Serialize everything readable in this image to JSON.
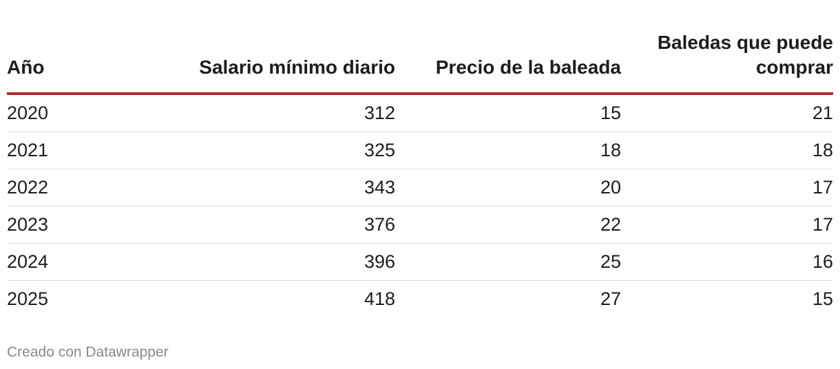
{
  "table": {
    "columns": [
      "Año",
      "Salario mínimo diario",
      "Precio de la baleada",
      "Baledas que puede comprar"
    ],
    "rows": [
      [
        "2020",
        312,
        15,
        21
      ],
      [
        "2021",
        325,
        18,
        18
      ],
      [
        "2022",
        343,
        20,
        17
      ],
      [
        "2023",
        376,
        22,
        17
      ],
      [
        "2024",
        396,
        25,
        16
      ],
      [
        "2025",
        418,
        27,
        15
      ]
    ]
  },
  "footer": "Creado con Datawrapper"
}
